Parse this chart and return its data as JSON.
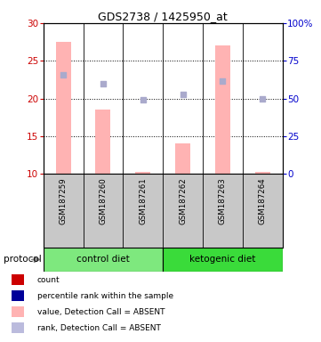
{
  "title": "GDS2738 / 1425950_at",
  "samples": [
    "GSM187259",
    "GSM187260",
    "GSM187261",
    "GSM187262",
    "GSM187263",
    "GSM187264"
  ],
  "bar_values": [
    27.5,
    18.5,
    10.2,
    14.0,
    27.0,
    10.2
  ],
  "dot_values": [
    23.2,
    22.0,
    19.8,
    20.5,
    22.3,
    19.9
  ],
  "bar_color": "#FFB3B3",
  "dot_color": "#AAAACC",
  "ylim_left": [
    10,
    30
  ],
  "ylim_right": [
    0,
    100
  ],
  "yticks_left": [
    10,
    15,
    20,
    25,
    30
  ],
  "yticks_right": [
    0,
    25,
    50,
    75,
    100
  ],
  "ytick_labels_right": [
    "0",
    "25",
    "50",
    "75",
    "100%"
  ],
  "groups": [
    {
      "label": "control diet",
      "start": 0,
      "end": 3,
      "color": "#7EE87E"
    },
    {
      "label": "ketogenic diet",
      "start": 3,
      "end": 6,
      "color": "#3ADB3A"
    }
  ],
  "protocol_label": "protocol",
  "legend_items": [
    {
      "color": "#CC0000",
      "label": "count"
    },
    {
      "color": "#000099",
      "label": "percentile rank within the sample"
    },
    {
      "color": "#FFB3B3",
      "label": "value, Detection Call = ABSENT"
    },
    {
      "color": "#BBBBDD",
      "label": "rank, Detection Call = ABSENT"
    }
  ],
  "background_color": "#FFFFFF",
  "plot_bg": "#FFFFFF",
  "sample_label_bg": "#C8C8C8",
  "left_axis_color": "#CC0000",
  "right_axis_color": "#0000CC",
  "grid_yticks": [
    15,
    20,
    25
  ]
}
